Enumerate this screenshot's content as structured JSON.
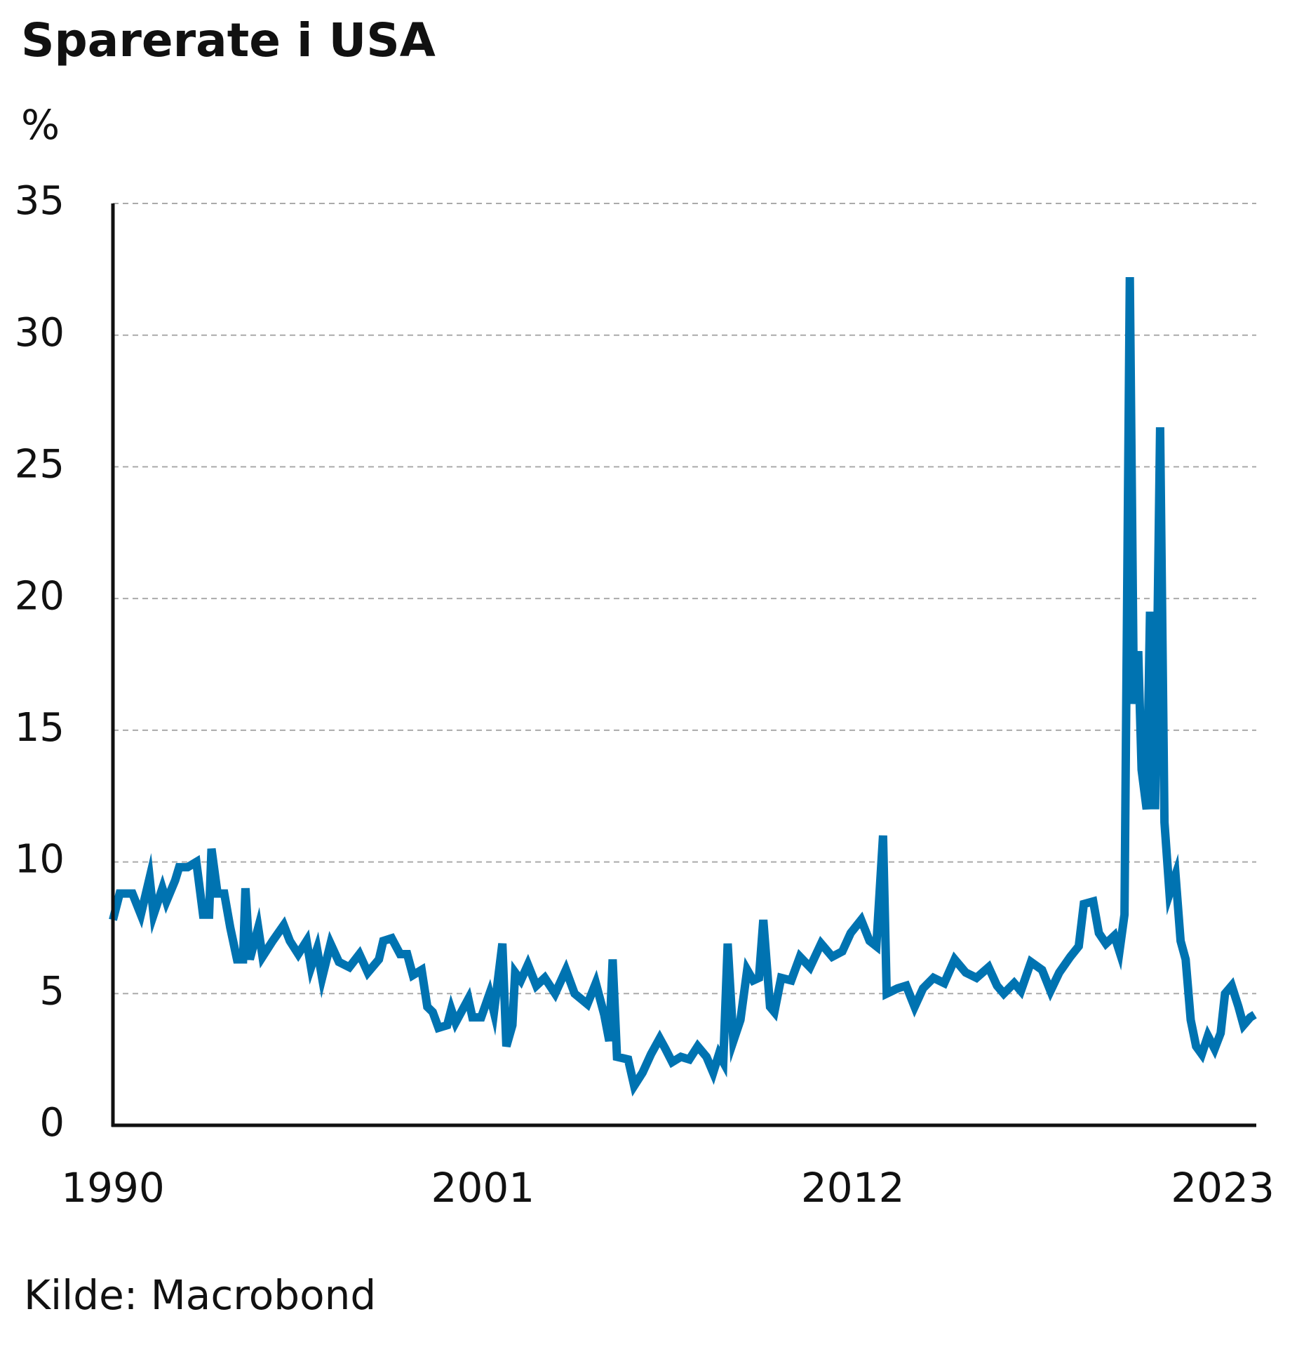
{
  "chart_data": {
    "type": "line",
    "title": "Sparerate i USA",
    "y_label": "%",
    "source": "Kilde: Macrobond",
    "color": "#0073b1",
    "grid": true,
    "xlim": [
      1990,
      2024
    ],
    "xticks": [
      1990,
      2001,
      2012,
      2023
    ],
    "ylim": [
      0,
      35
    ],
    "yticks": [
      0,
      5,
      10,
      15,
      20,
      25,
      30,
      35
    ],
    "x": [
      1990.0,
      1990.2,
      1990.58,
      1990.83,
      1991.09,
      1991.21,
      1991.47,
      1991.59,
      1991.85,
      1991.97,
      1992.22,
      1992.48,
      1992.68,
      1992.86,
      1992.93,
      1993.11,
      1993.31,
      1993.49,
      1993.69,
      1993.87,
      1993.94,
      1994.07,
      1994.32,
      1994.45,
      1994.75,
      1995.08,
      1995.26,
      1995.51,
      1995.76,
      1995.89,
      1996.07,
      1996.22,
      1996.47,
      1996.72,
      1997.03,
      1997.33,
      1997.58,
      1997.91,
      1998.04,
      1998.29,
      1998.54,
      1998.75,
      1998.92,
      1999.18,
      1999.35,
      1999.51,
      1999.68,
      1999.94,
      2000.06,
      2000.19,
      2000.57,
      2000.69,
      2000.95,
      2001.2,
      2001.33,
      2001.58,
      2001.7,
      2001.88,
      2001.96,
      2002.13,
      2002.34,
      2002.59,
      2002.84,
      2003.15,
      2003.47,
      2003.73,
      2004.11,
      2004.36,
      2004.61,
      2004.76,
      2004.86,
      2004.99,
      2005.32,
      2005.5,
      2005.75,
      2006.0,
      2006.26,
      2006.43,
      2006.63,
      2006.89,
      2007.14,
      2007.39,
      2007.65,
      2007.85,
      2008.02,
      2008.15,
      2008.28,
      2008.45,
      2008.66,
      2008.86,
      2009.04,
      2009.21,
      2009.34,
      2009.54,
      2009.67,
      2009.87,
      2010.17,
      2010.43,
      2010.73,
      2011.06,
      2011.39,
      2011.69,
      2011.94,
      2012.25,
      2012.5,
      2012.7,
      2012.9,
      2013.01,
      2013.33,
      2013.59,
      2013.84,
      2014.09,
      2014.4,
      2014.72,
      2015.03,
      2015.36,
      2015.68,
      2016.04,
      2016.29,
      2016.49,
      2016.8,
      2017.0,
      2017.3,
      2017.63,
      2017.88,
      2018.14,
      2018.47,
      2018.72,
      2018.87,
      2019.15,
      2019.32,
      2019.53,
      2019.78,
      2019.93,
      2020.08,
      2020.24,
      2020.36,
      2020.49,
      2020.59,
      2020.74,
      2020.84,
      2020.99,
      2021.14,
      2021.27,
      2021.42,
      2021.6,
      2021.75,
      2021.9,
      2022.05,
      2022.21,
      2022.38,
      2022.56,
      2022.76,
      2022.94,
      2023.07,
      2023.27,
      2023.47,
      2023.62,
      2023.82,
      2023.95
    ],
    "values": [
      7.8,
      8.8,
      8.8,
      8.0,
      9.4,
      8.0,
      9.0,
      8.5,
      9.3,
      9.8,
      9.8,
      10.0,
      8.0,
      8.0,
      10.5,
      8.8,
      8.8,
      7.5,
      6.3,
      6.3,
      9.0,
      6.3,
      7.5,
      6.4,
      7.0,
      7.6,
      7.0,
      6.5,
      7.0,
      6.0,
      6.7,
      5.6,
      6.9,
      6.2,
      6.0,
      6.5,
      5.8,
      6.3,
      7.0,
      7.1,
      6.5,
      6.5,
      5.7,
      5.9,
      4.5,
      4.3,
      3.7,
      3.8,
      4.4,
      3.9,
      4.8,
      4.1,
      4.1,
      5.0,
      4.3,
      6.9,
      3.0,
      3.8,
      5.8,
      5.5,
      6.1,
      5.3,
      5.6,
      5.0,
      5.9,
      5.0,
      4.6,
      5.4,
      4.2,
      3.2,
      6.3,
      2.6,
      2.5,
      1.5,
      2.0,
      2.7,
      3.3,
      2.9,
      2.4,
      2.6,
      2.5,
      3.0,
      2.6,
      2.0,
      2.7,
      2.4,
      6.9,
      3.2,
      4.0,
      5.9,
      5.5,
      5.6,
      7.8,
      4.5,
      4.3,
      5.6,
      5.5,
      6.4,
      6.0,
      6.9,
      6.4,
      6.6,
      7.3,
      7.8,
      7.0,
      6.8,
      11.0,
      5.0,
      5.2,
      5.3,
      4.5,
      5.2,
      5.6,
      5.4,
      6.3,
      5.8,
      5.6,
      6.0,
      5.3,
      5.0,
      5.4,
      5.1,
      6.2,
      5.9,
      5.1,
      5.8,
      6.4,
      6.8,
      8.4,
      8.5,
      7.3,
      6.9,
      7.2,
      6.6,
      8.0,
      32.2,
      16.0,
      18.0,
      13.5,
      12.0,
      19.5,
      12.0,
      26.5,
      11.5,
      8.8,
      9.5,
      7.0,
      6.3,
      4.0,
      3.0,
      2.7,
      3.4,
      2.9,
      3.5,
      5.0,
      5.3,
      4.5,
      3.8,
      4.1,
      4.2
    ]
  }
}
